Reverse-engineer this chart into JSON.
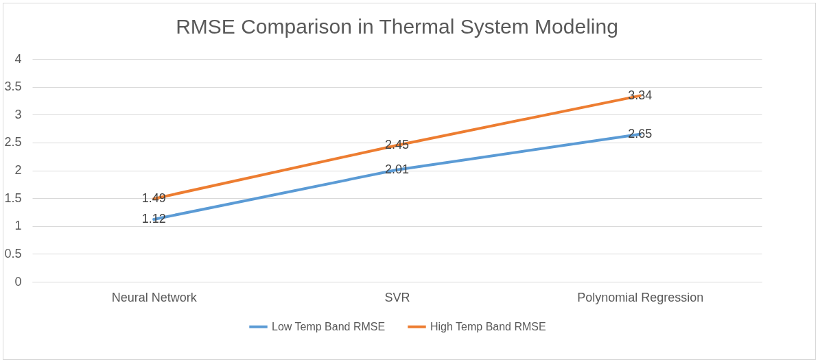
{
  "chart_data": {
    "type": "line",
    "title": "RMSE Comparison in Thermal System Modeling",
    "categories": [
      "Neural Network",
      "SVR",
      "Polynomial Regression"
    ],
    "series": [
      {
        "name": "Low Temp Band RMSE",
        "color": "#5b9bd5",
        "values": [
          1.12,
          2.01,
          2.65
        ]
      },
      {
        "name": "High Temp Band RMSE",
        "color": "#ed7d31",
        "values": [
          1.49,
          2.45,
          3.34
        ]
      }
    ],
    "ylim": [
      0,
      4
    ],
    "yticks": [
      0,
      0.5,
      1,
      1.5,
      2,
      2.5,
      3,
      3.5,
      4
    ],
    "grid": true,
    "legend": "bottom",
    "data_labels": true
  }
}
